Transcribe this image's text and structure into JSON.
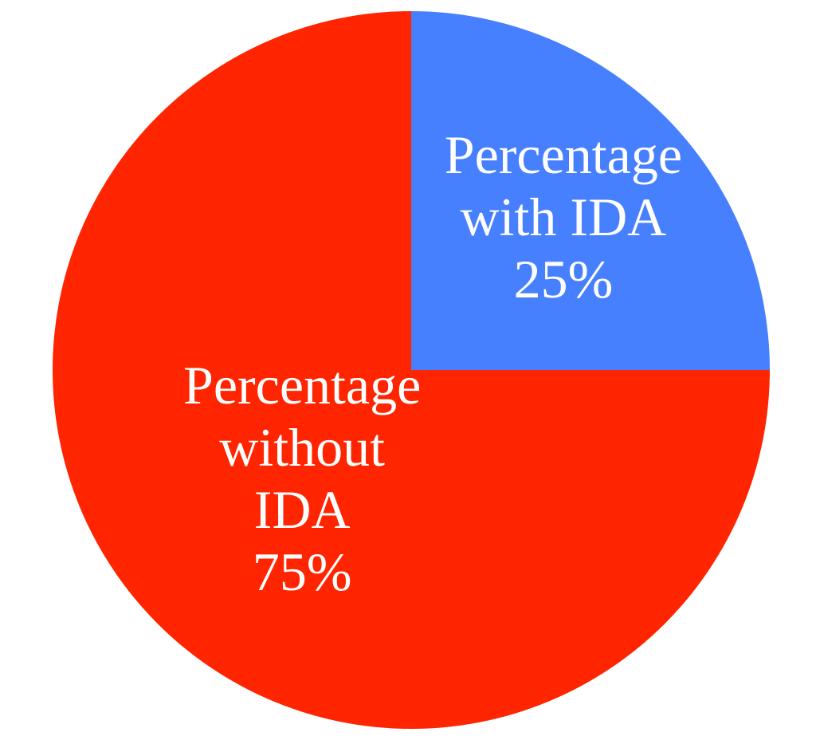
{
  "chart_data": {
    "type": "pie",
    "slices": [
      {
        "name": "Percentage with IDA",
        "value": 25,
        "label_lines": [
          "Percentage",
          "with IDA",
          "25%"
        ],
        "color": "#4680ff"
      },
      {
        "name": "Percentage without IDA",
        "value": 75,
        "label_lines": [
          "Percentage",
          "without",
          "IDA",
          "75%"
        ],
        "color": "#ff2500"
      }
    ],
    "start_direction": "top",
    "direction": "clockwise",
    "legend": "none",
    "labels_inside_slices": true
  }
}
